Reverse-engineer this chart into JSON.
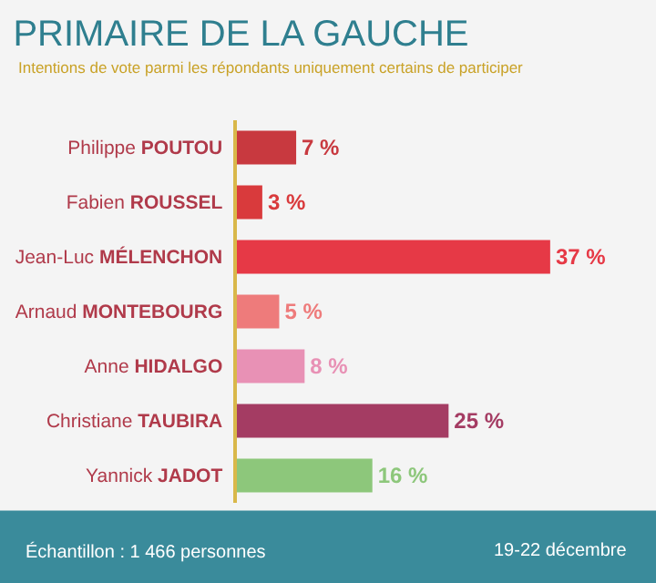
{
  "chart_data": {
    "type": "bar",
    "orientation": "horizontal",
    "title": "PRIMAIRE DE LA GAUCHE",
    "subtitle": "Intentions de vote parmi les répondants uniquement certains de participer",
    "categories": [
      "Philippe POUTOU",
      "Fabien ROUSSEL",
      "Jean-Luc MÉLENCHON",
      "Arnaud MONTEBOURG",
      "Anne HIDALGO",
      "Christiane TAUBIRA",
      "Yannick JADOT"
    ],
    "values": [
      7,
      3,
      37,
      5,
      8,
      25,
      16
    ],
    "colors": [
      "#c8393f",
      "#d93a3c",
      "#e63946",
      "#ee7b7b",
      "#e891b5",
      "#a43c63",
      "#8dc77b"
    ],
    "value_labels": [
      "7 %",
      "3 %",
      "37 %",
      "5 %",
      "8 %",
      "25 %",
      "16 %"
    ],
    "annotations": [
      "Échantillon : 1 466 personnes",
      "19-22 décembre"
    ],
    "legend": false,
    "grid": false
  }
}
